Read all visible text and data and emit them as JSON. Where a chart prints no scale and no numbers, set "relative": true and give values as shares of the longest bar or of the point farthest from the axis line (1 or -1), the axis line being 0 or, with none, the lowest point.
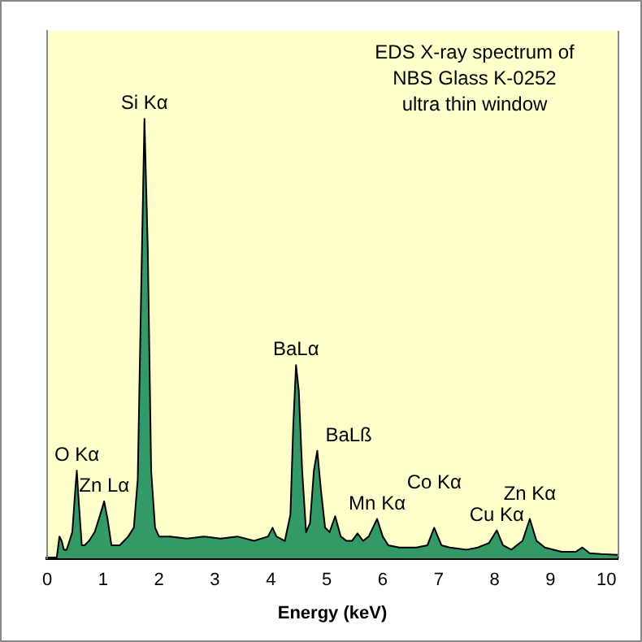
{
  "chart_data": {
    "type": "area",
    "title": "EDS X-ray spectrum of\nNBS Glass K-0252\nultra thin window",
    "xlabel": "Energy (keV)",
    "relative": true,
    "xlim": [
      0,
      10.2
    ],
    "xticks": [
      0,
      1,
      2,
      3,
      4,
      5,
      6,
      7,
      8,
      9,
      10
    ],
    "grid": false,
    "legend": false,
    "x": [
      0,
      0.17,
      0.22,
      0.26,
      0.3,
      0.35,
      0.4,
      0.45,
      0.5,
      0.53,
      0.57,
      0.62,
      0.67,
      0.75,
      0.85,
      0.95,
      1.02,
      1.08,
      1.15,
      1.3,
      1.45,
      1.55,
      1.62,
      1.68,
      1.74,
      1.8,
      1.86,
      1.93,
      2.0,
      2.2,
      2.5,
      2.8,
      3.1,
      3.4,
      3.7,
      3.95,
      4.03,
      4.1,
      4.25,
      4.35,
      4.4,
      4.45,
      4.5,
      4.56,
      4.63,
      4.7,
      4.77,
      4.83,
      4.9,
      4.97,
      5.05,
      5.15,
      5.25,
      5.35,
      5.45,
      5.55,
      5.65,
      5.75,
      5.9,
      6.0,
      6.1,
      6.3,
      6.6,
      6.8,
      6.92,
      7.05,
      7.2,
      7.5,
      7.7,
      7.9,
      8.04,
      8.15,
      8.3,
      8.5,
      8.63,
      8.75,
      8.9,
      9.2,
      9.45,
      9.57,
      9.7,
      9.9,
      10.2
    ],
    "series": [
      {
        "color": "#339966",
        "values": [
          0,
          0,
          0.05,
          0.04,
          0.02,
          0.02,
          0.04,
          0.06,
          0.15,
          0.2,
          0.12,
          0.03,
          0.03,
          0.04,
          0.06,
          0.1,
          0.13,
          0.09,
          0.03,
          0.03,
          0.05,
          0.07,
          0.18,
          0.6,
          1.0,
          0.7,
          0.2,
          0.07,
          0.05,
          0.05,
          0.045,
          0.05,
          0.045,
          0.05,
          0.04,
          0.05,
          0.07,
          0.05,
          0.04,
          0.1,
          0.3,
          0.44,
          0.38,
          0.2,
          0.06,
          0.08,
          0.2,
          0.245,
          0.15,
          0.07,
          0.06,
          0.096,
          0.05,
          0.04,
          0.04,
          0.057,
          0.04,
          0.05,
          0.09,
          0.05,
          0.03,
          0.025,
          0.025,
          0.03,
          0.07,
          0.03,
          0.025,
          0.02,
          0.025,
          0.035,
          0.064,
          0.03,
          0.02,
          0.04,
          0.09,
          0.04,
          0.025,
          0.015,
          0.015,
          0.025,
          0.012,
          0.01,
          0.008
        ]
      }
    ],
    "annotations": [
      {
        "text": "O Kα",
        "x": 0.53,
        "y": 0.2
      },
      {
        "text": "Zn Lα",
        "x": 1.02,
        "y": 0.13
      },
      {
        "text": "Si Kα",
        "x": 1.74,
        "y": 1.0
      },
      {
        "text": "BaLα",
        "x": 4.45,
        "y": 0.44
      },
      {
        "text": "BaLß",
        "x": 4.83,
        "y": 0.245
      },
      {
        "text": "Mn Kα",
        "x": 5.9,
        "y": 0.09
      },
      {
        "text": "Co Kα",
        "x": 6.92,
        "y": 0.07
      },
      {
        "text": "Cu Kα",
        "x": 8.04,
        "y": 0.064
      },
      {
        "text": "Zn Kα",
        "x": 8.63,
        "y": 0.09
      }
    ]
  }
}
